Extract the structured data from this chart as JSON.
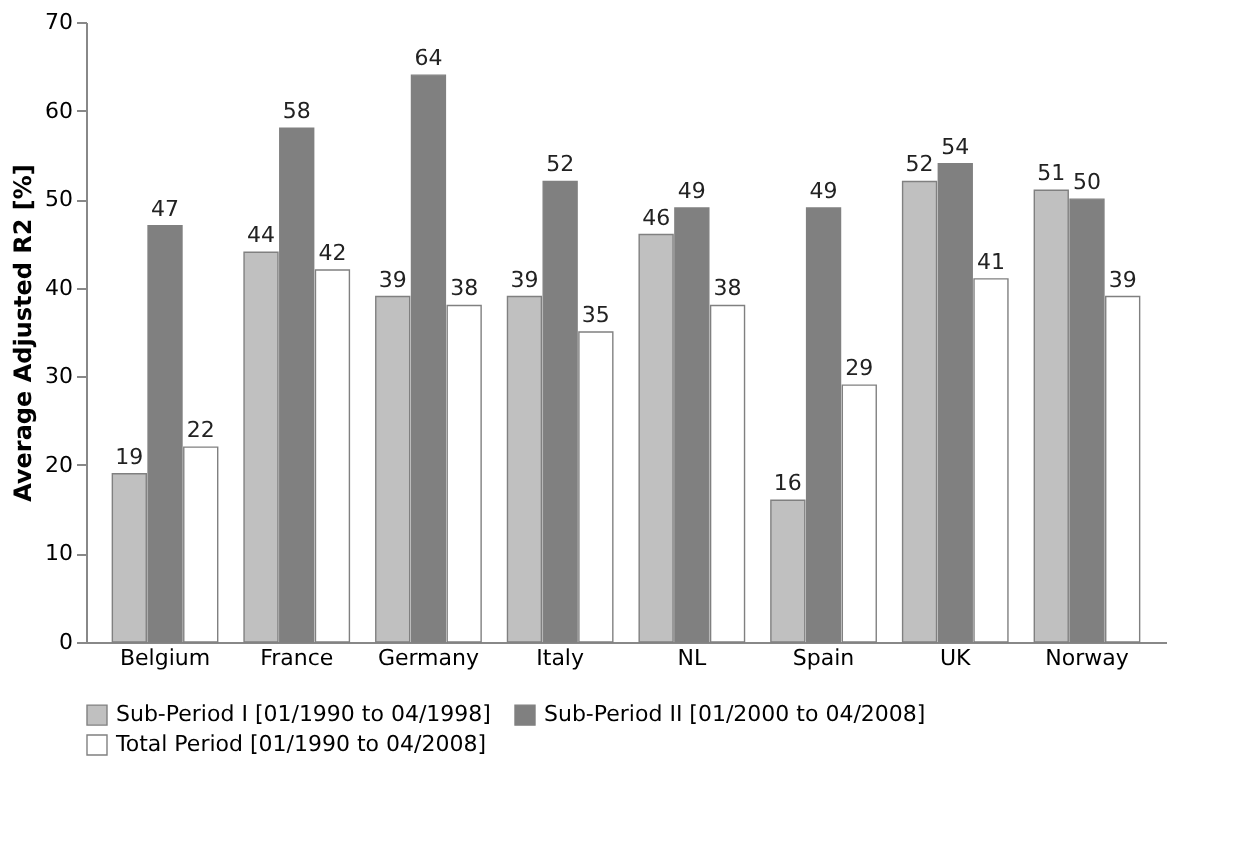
{
  "chart_data": {
    "type": "bar",
    "ylabel": "Average Adjusted R2 [%]",
    "categories": [
      "Belgium",
      "France",
      "Germany",
      "Italy",
      "NL",
      "Spain",
      "UK",
      "Norway"
    ],
    "series": [
      {
        "name": "Sub-Period I [01/1990 to 04/1998]",
        "color": "#c0c0c0",
        "values": [
          19,
          44,
          39,
          39,
          46,
          16,
          52,
          51
        ]
      },
      {
        "name": "Sub-Period II [01/2000 to 04/2008]",
        "color": "#808080",
        "values": [
          47,
          58,
          64,
          52,
          49,
          49,
          54,
          50
        ]
      },
      {
        "name": "Total Period [01/1990 to 04/2008]",
        "color": "#ffffff",
        "values": [
          22,
          42,
          38,
          35,
          38,
          29,
          41,
          39
        ]
      }
    ],
    "ylim": [
      0,
      70
    ],
    "yticks": [
      0,
      10,
      20,
      30,
      40,
      50,
      60,
      70
    ],
    "grid": false,
    "legend": "bottom",
    "data_labels": true
  }
}
